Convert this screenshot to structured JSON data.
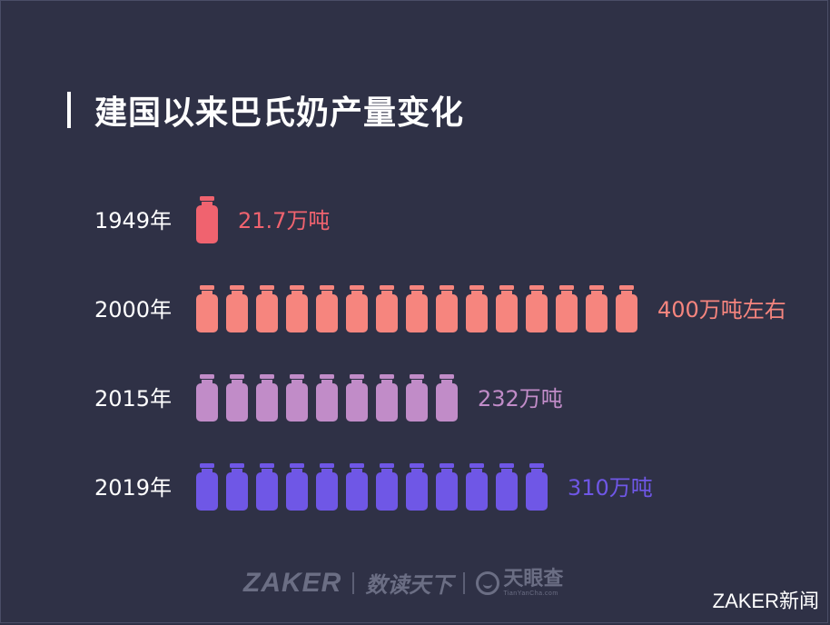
{
  "title": "建国以来巴氏奶产量变化",
  "chart_data": {
    "type": "bar",
    "unit": "万吨",
    "categories": [
      "1949年",
      "2000年",
      "2015年",
      "2019年"
    ],
    "values": [
      21.7,
      400,
      232,
      310
    ],
    "value_labels": [
      "21.7万吨",
      "400万吨左右",
      "232万吨",
      "310万吨"
    ],
    "icon_counts": [
      1,
      15,
      9,
      12
    ],
    "colors": [
      "#f0636f",
      "#f6857e",
      "#c18cc8",
      "#6f57e6"
    ]
  },
  "footer": {
    "zaker": "ZAKER",
    "shudu": "数读天下",
    "tianyancha": "天眼查",
    "tianyancha_en": "TianYanCha.com"
  },
  "watermark": "ZAKER新闻"
}
